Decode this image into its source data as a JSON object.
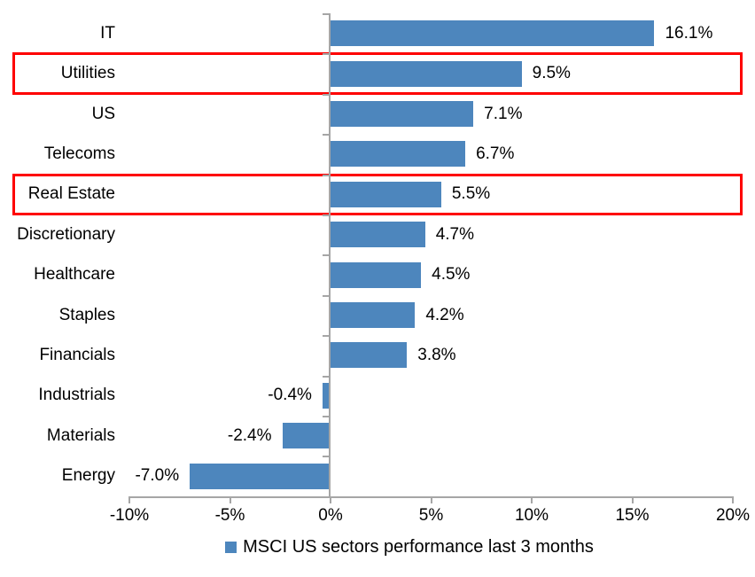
{
  "chart_data": {
    "type": "bar",
    "orientation": "horizontal",
    "title": "",
    "xlabel": "",
    "ylabel": "",
    "categories": [
      "IT",
      "Utilities",
      "US",
      "Telecoms",
      "Real Estate",
      "Discretionary",
      "Healthcare",
      "Staples",
      "Financials",
      "Industrials",
      "Materials",
      "Energy"
    ],
    "values": [
      16.1,
      9.5,
      7.1,
      6.7,
      5.5,
      4.7,
      4.5,
      4.2,
      3.8,
      -0.4,
      -2.4,
      -7.0
    ],
    "value_labels": [
      "16.1%",
      "9.5%",
      "7.1%",
      "6.7%",
      "5.5%",
      "4.7%",
      "4.5%",
      "4.2%",
      "3.8%",
      "-0.4%",
      "-2.4%",
      "-7.0%"
    ],
    "xlim": [
      -10,
      20
    ],
    "x_tick_values": [
      -10,
      -5,
      0,
      5,
      10,
      15,
      20
    ],
    "x_tick_labels": [
      "-10%",
      "-5%",
      "0%",
      "5%",
      "10%",
      "15%",
      "20%"
    ],
    "grid": false,
    "legend": "MSCI US sectors performance last 3 months",
    "legend_position": "bottom",
    "highlighted_categories": [
      "Utilities",
      "Real Estate"
    ],
    "colors": {
      "bar": "#4D86BD",
      "highlight_box": "#FE0000",
      "axis": "#A6A6A6",
      "text": "#000000",
      "background": "#FFFFFF"
    }
  }
}
